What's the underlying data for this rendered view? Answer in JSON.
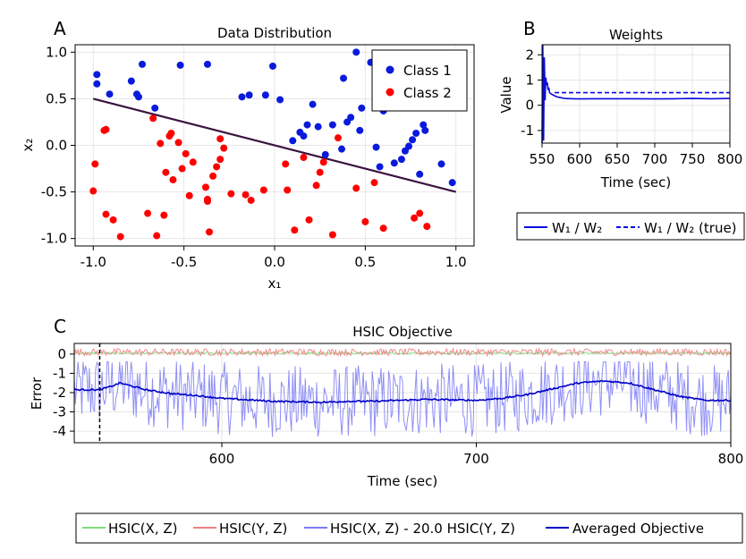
{
  "panels": {
    "a": "A",
    "b": "B",
    "c": "C"
  },
  "chart_data": [
    {
      "type": "scatter",
      "title": "Data Distribution",
      "xlabel": "x₁",
      "ylabel": "x₂",
      "xlim": [
        -1.1,
        1.1
      ],
      "ylim": [
        -1.08,
        1.08
      ],
      "xticks": [
        -1.0,
        -0.5,
        0.0,
        0.5,
        1.0
      ],
      "xtick_labels": [
        "-1.0",
        "-0.5",
        "0.0",
        "0.5",
        "1.0"
      ],
      "yticks": [
        -1.0,
        -0.5,
        0.0,
        0.5,
        1.0
      ],
      "ytick_labels": [
        "-1.0",
        "-0.5",
        "0.0",
        "0.5",
        "1.0"
      ],
      "legend_position": "top-right",
      "series": [
        {
          "name": "Class 1",
          "color": "#0a1adc",
          "points": [
            [
              -0.98,
              0.76
            ],
            [
              -0.98,
              0.66
            ],
            [
              -0.91,
              0.55
            ],
            [
              -0.79,
              0.69
            ],
            [
              -0.76,
              0.55
            ],
            [
              -0.75,
              0.52
            ],
            [
              -0.73,
              0.87
            ],
            [
              -0.66,
              0.4
            ],
            [
              -0.52,
              0.86
            ],
            [
              -0.37,
              0.87
            ],
            [
              -0.18,
              0.52
            ],
            [
              -0.14,
              0.54
            ],
            [
              -0.05,
              0.54
            ],
            [
              -0.01,
              0.85
            ],
            [
              0.03,
              0.49
            ],
            [
              0.1,
              0.05
            ],
            [
              0.14,
              0.14
            ],
            [
              0.16,
              0.1
            ],
            [
              0.18,
              0.22
            ],
            [
              0.21,
              0.44
            ],
            [
              0.24,
              0.2
            ],
            [
              0.28,
              -0.1
            ],
            [
              0.32,
              0.22
            ],
            [
              0.37,
              -0.04
            ],
            [
              0.38,
              0.72
            ],
            [
              0.4,
              0.25
            ],
            [
              0.42,
              0.3
            ],
            [
              0.45,
              1.0
            ],
            [
              0.47,
              0.16
            ],
            [
              0.48,
              0.4
            ],
            [
              0.53,
              0.89
            ],
            [
              0.56,
              -0.02
            ],
            [
              0.58,
              -0.23
            ],
            [
              0.6,
              0.37
            ],
            [
              0.63,
              0.41
            ],
            [
              0.66,
              -0.19
            ],
            [
              0.67,
              0.76
            ],
            [
              0.7,
              -0.15
            ],
            [
              0.72,
              -0.06
            ],
            [
              0.74,
              -0.01
            ],
            [
              0.76,
              0.06
            ],
            [
              0.78,
              0.13
            ],
            [
              0.8,
              -0.31
            ],
            [
              0.82,
              0.22
            ],
            [
              0.83,
              0.16
            ],
            [
              0.92,
              -0.2
            ],
            [
              0.98,
              -0.4
            ]
          ]
        },
        {
          "name": "Class 2",
          "color": "#ff0000",
          "points": [
            [
              -1.0,
              -0.49
            ],
            [
              -0.99,
              -0.2
            ],
            [
              -0.94,
              0.16
            ],
            [
              -0.93,
              0.17
            ],
            [
              -0.93,
              -0.74
            ],
            [
              -0.89,
              -0.8
            ],
            [
              -0.85,
              -0.98
            ],
            [
              -0.7,
              -0.73
            ],
            [
              -0.67,
              0.29
            ],
            [
              -0.65,
              -0.97
            ],
            [
              -0.63,
              0.02
            ],
            [
              -0.61,
              -0.75
            ],
            [
              -0.6,
              -0.29
            ],
            [
              -0.58,
              0.1
            ],
            [
              -0.57,
              0.13
            ],
            [
              -0.56,
              -0.37
            ],
            [
              -0.53,
              0.03
            ],
            [
              -0.51,
              -0.25
            ],
            [
              -0.49,
              -0.09
            ],
            [
              -0.47,
              -0.54
            ],
            [
              -0.45,
              -0.18
            ],
            [
              -0.38,
              -0.45
            ],
            [
              -0.37,
              -0.58
            ],
            [
              -0.37,
              -0.6
            ],
            [
              -0.36,
              -0.93
            ],
            [
              -0.34,
              -0.33
            ],
            [
              -0.32,
              -0.23
            ],
            [
              -0.3,
              -0.15
            ],
            [
              -0.3,
              0.07
            ],
            [
              -0.28,
              -0.03
            ],
            [
              -0.24,
              -0.52
            ],
            [
              -0.16,
              -0.53
            ],
            [
              -0.13,
              -0.59
            ],
            [
              -0.06,
              -0.48
            ],
            [
              0.06,
              -0.2
            ],
            [
              0.07,
              -0.48
            ],
            [
              0.11,
              -0.91
            ],
            [
              0.16,
              -0.13
            ],
            [
              0.19,
              -0.8
            ],
            [
              0.23,
              -0.43
            ],
            [
              0.25,
              -0.29
            ],
            [
              0.27,
              -0.18
            ],
            [
              0.32,
              -0.96
            ],
            [
              0.35,
              0.08
            ],
            [
              0.45,
              -0.46
            ],
            [
              0.5,
              -0.82
            ],
            [
              0.55,
              -0.4
            ],
            [
              0.6,
              -0.89
            ],
            [
              0.77,
              -0.78
            ],
            [
              0.8,
              -0.73
            ],
            [
              0.84,
              -0.87
            ]
          ]
        }
      ],
      "decision_boundary": {
        "name": "",
        "color": "#3b1240",
        "x": [
          -1.0,
          1.0
        ],
        "y": [
          0.5,
          -0.5
        ]
      }
    },
    {
      "type": "line",
      "title": "Weights",
      "xlabel": "Time (sec)",
      "ylabel": "Value",
      "xlim": [
        550,
        800
      ],
      "ylim": [
        -1.5,
        2.4
      ],
      "xticks": [
        550,
        600,
        650,
        700,
        750,
        800
      ],
      "xtick_labels": [
        "550",
        "600",
        "650",
        "700",
        "750",
        "800"
      ],
      "yticks": [
        -1,
        0,
        1,
        2
      ],
      "ytick_labels": [
        "-1",
        "0",
        "1",
        "2"
      ],
      "legend_position": "below",
      "series": [
        {
          "name": "W₁ / W₂",
          "color": "#0a0adc",
          "style": "solid",
          "x": [
            550,
            551,
            552,
            553,
            554,
            555,
            556,
            557,
            558,
            559,
            560,
            562,
            565,
            570,
            575,
            580,
            590,
            600,
            620,
            650,
            675,
            700,
            725,
            750,
            775,
            800
          ],
          "y": [
            -1.5,
            2.4,
            -1.4,
            1.9,
            0.2,
            1.1,
            0.8,
            0.9,
            0.6,
            0.7,
            0.5,
            0.45,
            0.4,
            0.33,
            0.3,
            0.27,
            0.26,
            0.25,
            0.26,
            0.26,
            0.26,
            0.25,
            0.26,
            0.27,
            0.26,
            0.27
          ]
        },
        {
          "name": "W₁ / W₂ (true)",
          "color": "#0a0adc",
          "style": "dashed",
          "x": [
            550,
            800
          ],
          "y": [
            0.5,
            0.5
          ]
        }
      ]
    },
    {
      "type": "line",
      "title": "HSIC Objective",
      "xlabel": "Time (sec)",
      "ylabel": "Error",
      "xlim": [
        542,
        800
      ],
      "ylim": [
        -4.6,
        0.55
      ],
      "xticks": [
        600,
        700,
        800
      ],
      "xtick_labels": [
        "600",
        "700",
        "800"
      ],
      "yticks": [
        0,
        -1,
        -2,
        -3,
        -4
      ],
      "ytick_labels": [
        "0",
        "-1",
        "-2",
        "-3",
        "-4"
      ],
      "vline_x": 552,
      "legend_position": "below",
      "series": [
        {
          "name": "HSIC(X, Z)",
          "color": "#7ddc7d",
          "level": 0.05,
          "noise": 0.05
        },
        {
          "name": "HSIC(Y, Z)",
          "color": "#f08080",
          "level": 0.1,
          "noise": 0.18
        },
        {
          "name": "HSIC(X, Z) - 20.0 HSIC(Y, Z)",
          "color": "#7b7bf5",
          "noise": 1.0,
          "min": -4.3,
          "max": -0.4
        },
        {
          "name": "Averaged Objective",
          "color": "#0000c8",
          "x": [
            542,
            552,
            556,
            560,
            570,
            580,
            590,
            600,
            620,
            640,
            650,
            660,
            680,
            700,
            710,
            720,
            730,
            740,
            750,
            760,
            770,
            780,
            790,
            800
          ],
          "y": [
            -1.85,
            -1.85,
            -1.7,
            -1.5,
            -1.85,
            -2.05,
            -2.15,
            -2.3,
            -2.45,
            -2.5,
            -2.45,
            -2.45,
            -2.35,
            -2.4,
            -2.3,
            -2.1,
            -1.8,
            -1.5,
            -1.4,
            -1.5,
            -1.85,
            -2.2,
            -2.4,
            -2.4
          ]
        }
      ]
    }
  ]
}
